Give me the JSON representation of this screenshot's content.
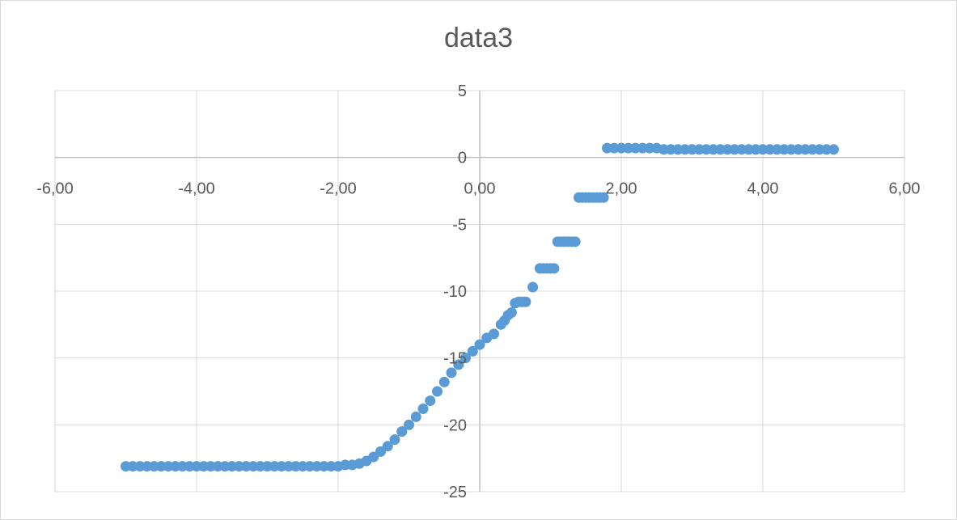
{
  "chart_data": {
    "type": "scatter",
    "title": "data3",
    "xlabel": "",
    "ylabel": "",
    "xlim": [
      -6,
      6
    ],
    "ylim": [
      -25,
      5
    ],
    "x_ticks": [
      -6,
      -4,
      -2,
      0,
      2,
      4,
      6
    ],
    "x_tick_labels": [
      "-6,00",
      "-4,00",
      "-2,00",
      "0,00",
      "2,00",
      "4,00",
      "6,00"
    ],
    "y_ticks": [
      5,
      0,
      -5,
      -10,
      -15,
      -20,
      -25
    ],
    "y_tick_labels": [
      "5",
      "0",
      "-5",
      "-10",
      "-15",
      "-20",
      "-25"
    ],
    "grid": true,
    "legend": "none",
    "marker_color": "#5b9bd5",
    "series": [
      {
        "points": [
          [
            -5.0,
            -23.1
          ],
          [
            -4.9,
            -23.1
          ],
          [
            -4.8,
            -23.1
          ],
          [
            -4.7,
            -23.1
          ],
          [
            -4.6,
            -23.1
          ],
          [
            -4.5,
            -23.1
          ],
          [
            -4.4,
            -23.1
          ],
          [
            -4.3,
            -23.1
          ],
          [
            -4.2,
            -23.1
          ],
          [
            -4.1,
            -23.1
          ],
          [
            -4.0,
            -23.1
          ],
          [
            -3.9,
            -23.1
          ],
          [
            -3.8,
            -23.1
          ],
          [
            -3.7,
            -23.1
          ],
          [
            -3.6,
            -23.1
          ],
          [
            -3.5,
            -23.1
          ],
          [
            -3.4,
            -23.1
          ],
          [
            -3.3,
            -23.1
          ],
          [
            -3.2,
            -23.1
          ],
          [
            -3.1,
            -23.1
          ],
          [
            -3.0,
            -23.1
          ],
          [
            -2.9,
            -23.1
          ],
          [
            -2.8,
            -23.1
          ],
          [
            -2.7,
            -23.1
          ],
          [
            -2.6,
            -23.1
          ],
          [
            -2.5,
            -23.1
          ],
          [
            -2.4,
            -23.1
          ],
          [
            -2.3,
            -23.1
          ],
          [
            -2.2,
            -23.1
          ],
          [
            -2.1,
            -23.1
          ],
          [
            -2.0,
            -23.1
          ],
          [
            -1.9,
            -23.0
          ],
          [
            -1.8,
            -23.0
          ],
          [
            -1.7,
            -22.9
          ],
          [
            -1.6,
            -22.7
          ],
          [
            -1.5,
            -22.4
          ],
          [
            -1.4,
            -22.0
          ],
          [
            -1.3,
            -21.6
          ],
          [
            -1.2,
            -21.1
          ],
          [
            -1.1,
            -20.5
          ],
          [
            -1.0,
            -20.0
          ],
          [
            -0.9,
            -19.4
          ],
          [
            -0.8,
            -18.8
          ],
          [
            -0.7,
            -18.2
          ],
          [
            -0.6,
            -17.5
          ],
          [
            -0.5,
            -16.8
          ],
          [
            -0.4,
            -16.1
          ],
          [
            -0.3,
            -15.5
          ],
          [
            -0.2,
            -15.0
          ],
          [
            -0.1,
            -14.5
          ],
          [
            0.0,
            -14.0
          ],
          [
            0.1,
            -13.5
          ],
          [
            0.2,
            -13.2
          ],
          [
            0.3,
            -12.5
          ],
          [
            0.35,
            -12.2
          ],
          [
            0.4,
            -11.8
          ],
          [
            0.45,
            -11.6
          ],
          [
            0.5,
            -10.9
          ],
          [
            0.55,
            -10.8
          ],
          [
            0.6,
            -10.8
          ],
          [
            0.65,
            -10.8
          ],
          [
            0.75,
            -9.7
          ],
          [
            0.85,
            -8.3
          ],
          [
            0.9,
            -8.3
          ],
          [
            0.95,
            -8.3
          ],
          [
            1.0,
            -8.3
          ],
          [
            1.05,
            -8.3
          ],
          [
            1.1,
            -6.3
          ],
          [
            1.15,
            -6.3
          ],
          [
            1.2,
            -6.3
          ],
          [
            1.25,
            -6.3
          ],
          [
            1.3,
            -6.3
          ],
          [
            1.35,
            -6.3
          ],
          [
            1.4,
            -3.0
          ],
          [
            1.45,
            -3.0
          ],
          [
            1.5,
            -3.0
          ],
          [
            1.55,
            -3.0
          ],
          [
            1.6,
            -3.0
          ],
          [
            1.65,
            -3.0
          ],
          [
            1.7,
            -3.0
          ],
          [
            1.75,
            -3.0
          ],
          [
            1.8,
            0.7
          ],
          [
            1.9,
            0.7
          ],
          [
            2.0,
            0.7
          ],
          [
            2.1,
            0.7
          ],
          [
            2.2,
            0.7
          ],
          [
            2.3,
            0.7
          ],
          [
            2.4,
            0.7
          ],
          [
            2.5,
            0.7
          ],
          [
            2.6,
            0.6
          ],
          [
            2.7,
            0.6
          ],
          [
            2.8,
            0.6
          ],
          [
            2.9,
            0.6
          ],
          [
            3.0,
            0.6
          ],
          [
            3.1,
            0.6
          ],
          [
            3.2,
            0.6
          ],
          [
            3.3,
            0.6
          ],
          [
            3.4,
            0.6
          ],
          [
            3.5,
            0.6
          ],
          [
            3.6,
            0.6
          ],
          [
            3.7,
            0.6
          ],
          [
            3.8,
            0.6
          ],
          [
            3.9,
            0.6
          ],
          [
            4.0,
            0.6
          ],
          [
            4.1,
            0.6
          ],
          [
            4.2,
            0.6
          ],
          [
            4.3,
            0.6
          ],
          [
            4.4,
            0.6
          ],
          [
            4.5,
            0.6
          ],
          [
            4.6,
            0.6
          ],
          [
            4.7,
            0.6
          ],
          [
            4.8,
            0.6
          ],
          [
            4.9,
            0.6
          ],
          [
            5.0,
            0.6
          ]
        ]
      }
    ]
  }
}
